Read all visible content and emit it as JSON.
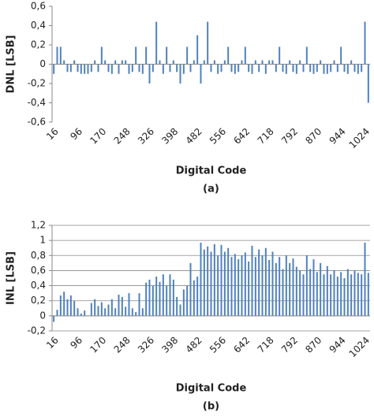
{
  "chart_data": [
    {
      "type": "bar",
      "xlabel": "Digital Code",
      "ylabel": "DNL [LSB]",
      "caption": "(a)",
      "color": "#4f81bd",
      "grid": false,
      "categories": [
        16,
        null,
        null,
        null,
        null,
        null,
        null,
        96,
        null,
        null,
        null,
        null,
        null,
        null,
        170,
        null,
        null,
        null,
        null,
        null,
        null,
        248,
        null,
        null,
        null,
        null,
        null,
        null,
        326,
        null,
        null,
        null,
        null,
        null,
        null,
        398,
        null,
        null,
        null,
        null,
        null,
        null,
        482,
        null,
        null,
        null,
        null,
        null,
        null,
        556,
        null,
        null,
        null,
        null,
        null,
        null,
        642,
        null,
        null,
        null,
        null,
        null,
        null,
        718,
        null,
        null,
        null,
        null,
        null,
        null,
        792,
        null,
        null,
        null,
        null,
        null,
        null,
        870,
        null,
        null,
        null,
        null,
        null,
        null,
        944,
        null,
        null,
        null,
        null,
        null,
        null,
        1024,
        null
      ],
      "values": [
        -0.1,
        0.18,
        0.18,
        0.04,
        -0.08,
        -0.08,
        0.04,
        -0.08,
        -0.1,
        -0.1,
        -0.1,
        -0.08,
        0.04,
        -0.08,
        0.18,
        0.04,
        -0.08,
        -0.1,
        0.04,
        -0.1,
        0.04,
        0.04,
        -0.1,
        -0.08,
        0.18,
        -0.08,
        -0.1,
        0.18,
        -0.2,
        -0.08,
        0.44,
        0.04,
        -0.1,
        0.18,
        -0.08,
        0.04,
        -0.08,
        -0.2,
        -0.1,
        0.18,
        -0.08,
        0.04,
        0.3,
        -0.2,
        0.04,
        0.44,
        -0.08,
        0.04,
        -0.1,
        -0.08,
        0.04,
        0.18,
        -0.08,
        -0.1,
        -0.08,
        0.04,
        0.18,
        -0.08,
        -0.1,
        0.04,
        -0.08,
        0.04,
        -0.1,
        0.04,
        0.04,
        -0.08,
        0.18,
        -0.08,
        -0.1,
        0.04,
        -0.08,
        -0.1,
        0.04,
        -0.08,
        0.18,
        -0.08,
        -0.1,
        -0.08,
        0.04,
        -0.1,
        -0.1,
        -0.08,
        0.04,
        -0.08,
        0.18,
        -0.08,
        -0.1,
        0.04,
        -0.08,
        -0.1,
        -0.08,
        0.44,
        -0.4
      ],
      "ylim": [
        -0.6,
        0.6
      ],
      "yticks": [
        {
          "value": -0.6,
          "label": "-0,6"
        },
        {
          "value": -0.4,
          "label": "-0,4"
        },
        {
          "value": -0.2,
          "label": "-0,2"
        },
        0,
        {
          "value": 0.2,
          "label": "0,2"
        },
        {
          "value": 0.4,
          "label": "0,4"
        },
        {
          "value": 0.6,
          "label": "0,6"
        }
      ]
    },
    {
      "type": "bar",
      "xlabel": "Digital Code",
      "ylabel": "INL [LSB]",
      "caption": "(b)",
      "color": "#4f81bd",
      "grid": true,
      "categories": [
        16,
        null,
        null,
        null,
        null,
        null,
        null,
        96,
        null,
        null,
        null,
        null,
        null,
        null,
        170,
        null,
        null,
        null,
        null,
        null,
        null,
        248,
        null,
        null,
        null,
        null,
        null,
        null,
        326,
        null,
        null,
        null,
        null,
        null,
        null,
        398,
        null,
        null,
        null,
        null,
        null,
        null,
        482,
        null,
        null,
        null,
        null,
        null,
        null,
        556,
        null,
        null,
        null,
        null,
        null,
        null,
        642,
        null,
        null,
        null,
        null,
        null,
        null,
        718,
        null,
        null,
        null,
        null,
        null,
        null,
        792,
        null,
        null,
        null,
        null,
        null,
        null,
        870,
        null,
        null,
        null,
        null,
        null,
        null,
        944,
        null,
        null,
        null,
        null,
        null,
        null,
        1024,
        null
      ],
      "values": [
        -0.08,
        0.08,
        0.27,
        0.32,
        0.22,
        0.27,
        0.2,
        0.1,
        0.03,
        0.07,
        0,
        0.17,
        0.22,
        0.13,
        0.18,
        0.1,
        0.15,
        0.22,
        0.1,
        0.28,
        0.25,
        0.12,
        0.3,
        0.1,
        0.05,
        0.3,
        0.1,
        0.44,
        0.48,
        0.4,
        0.52,
        0.45,
        0.55,
        0.4,
        0.55,
        0.48,
        0.25,
        0.15,
        0.35,
        0.4,
        0.7,
        0.47,
        0.52,
        0.97,
        0.88,
        0.92,
        0.85,
        0.95,
        0.8,
        0.94,
        0.85,
        0.9,
        0.78,
        0.82,
        0.75,
        0.8,
        0.84,
        0.72,
        0.93,
        0.78,
        0.88,
        0.8,
        0.9,
        0.74,
        0.85,
        0.7,
        0.78,
        0.62,
        0.8,
        0.7,
        0.76,
        0.65,
        0.6,
        0.55,
        0.8,
        0.62,
        0.75,
        0.58,
        0.7,
        0.55,
        0.66,
        0.55,
        0.6,
        0.52,
        0.58,
        0.5,
        0.62,
        0.55,
        0.6,
        0.57,
        0.55,
        0.97,
        0.57
      ],
      "ylim": [
        -0.2,
        1.2
      ],
      "yticks": [
        {
          "value": -0.2,
          "label": "-0,2"
        },
        0,
        {
          "value": 0.2,
          "label": "0,2"
        },
        {
          "value": 0.4,
          "label": "0,4"
        },
        {
          "value": 0.6,
          "label": "0,6"
        },
        {
          "value": 0.8,
          "label": "0,8"
        },
        1,
        {
          "value": 1.2,
          "label": "1,2"
        }
      ]
    }
  ]
}
